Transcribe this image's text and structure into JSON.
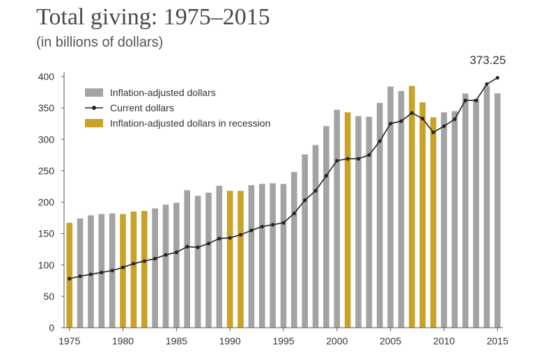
{
  "chart_data": {
    "type": "bar",
    "title": "Total giving: 1975–2015",
    "subtitle": "(in billions of dollars)",
    "xlabel": "",
    "ylabel": "",
    "ylim": [
      0,
      400
    ],
    "y_ticks": [
      0,
      50,
      100,
      150,
      200,
      250,
      300,
      350,
      400
    ],
    "x_tick_labels": [
      "1975",
      "1980",
      "1985",
      "1990",
      "1995",
      "2000",
      "2005",
      "2010",
      "2015"
    ],
    "x": [
      1975,
      1976,
      1977,
      1978,
      1979,
      1980,
      1981,
      1982,
      1983,
      1984,
      1985,
      1986,
      1987,
      1988,
      1989,
      1990,
      1991,
      1992,
      1993,
      1994,
      1995,
      1996,
      1997,
      1998,
      1999,
      2000,
      2001,
      2002,
      2003,
      2004,
      2005,
      2006,
      2007,
      2008,
      2009,
      2010,
      2011,
      2012,
      2013,
      2014,
      2015
    ],
    "series": [
      {
        "name": "Inflation-adjusted dollars",
        "kind": "bar",
        "values": [
          167,
          174,
          179,
          181,
          182,
          181,
          185,
          186,
          190,
          196,
          199,
          219,
          210,
          215,
          226,
          218,
          218,
          227,
          229,
          230,
          229,
          248,
          276,
          291,
          321,
          347,
          343,
          337,
          336,
          358,
          384,
          377,
          385,
          359,
          335,
          343,
          345,
          373,
          364,
          385,
          373.25
        ]
      },
      {
        "name": "Current dollars",
        "kind": "line",
        "values": [
          78,
          82,
          85,
          88,
          91,
          96,
          102,
          106,
          110,
          116,
          120,
          129,
          128,
          134,
          142,
          143,
          148,
          155,
          161,
          164,
          167,
          182,
          203,
          218,
          242,
          266,
          269,
          269,
          275,
          297,
          325,
          329,
          342,
          333,
          311,
          321,
          332,
          362,
          362,
          388,
          398
        ]
      }
    ],
    "recession_years": [
      1975,
      1980,
      1981,
      1982,
      1990,
      1991,
      2001,
      2007,
      2008,
      2009
    ],
    "legend": {
      "placement": "top-left",
      "items": [
        "Inflation-adjusted dollars",
        "Current dollars",
        "Inflation-adjusted dollars in recession"
      ]
    },
    "annotations": [
      {
        "text": "373.25",
        "x": 2015
      }
    ],
    "grid": false,
    "colors": {
      "bar": "#a3a3a3",
      "recession": "#c9a227",
      "line": "#222222",
      "axis": "#555555"
    }
  }
}
